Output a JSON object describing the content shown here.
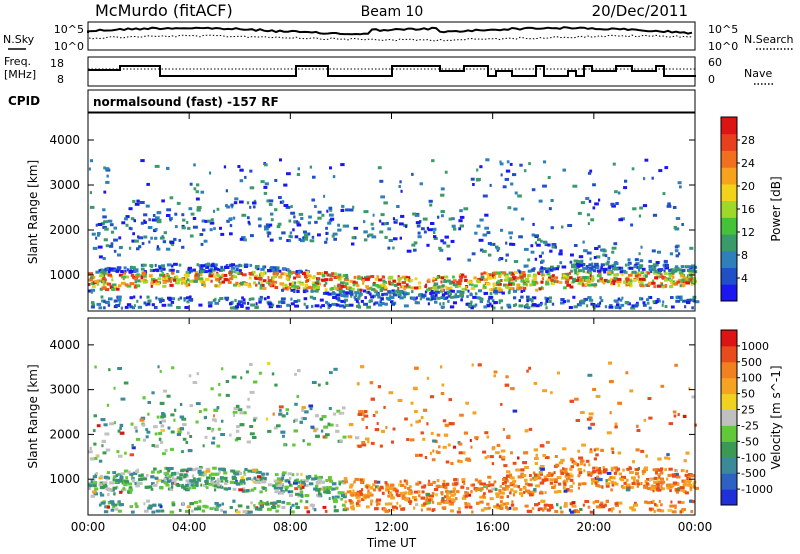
{
  "header": {
    "title_left": "McMurdo (fitACF)",
    "title_center": "Beam 10",
    "title_right": "20/Dec/2011"
  },
  "strip_nsky": {
    "left_label": "N.Sky",
    "right_label": "N.Search",
    "tick_top": "10^5",
    "tick_bottom": "10^0",
    "tick_top_right": "10^5",
    "tick_bottom_right": "10^0"
  },
  "strip_freq": {
    "left_label_1": "Freq.",
    "left_label_2": "[MHz]",
    "right_label": "Nave",
    "tick_top_left": "18",
    "tick_bottom_left": "8",
    "tick_top_right": "60",
    "tick_bottom_right": "0"
  },
  "cpid": {
    "label": "CPID",
    "text": "normalsound (fast) -157 RF"
  },
  "chart_data": [
    {
      "type": "heatmap",
      "ylabel": "Slant Range [km]",
      "ylim": [
        200,
        4600
      ],
      "y_ticks": [
        "1000",
        "2000",
        "3000",
        "4000"
      ],
      "x_ticks": [
        "00:00",
        "04:00",
        "08:00",
        "12:00",
        "16:00",
        "20:00",
        "00:00"
      ],
      "colorbar_label": "Power [dB]",
      "colorbar_ticks": [
        "28",
        "24",
        "20",
        "16",
        "12",
        "8",
        "4"
      ],
      "colorbar_colors": [
        "#1c16f0",
        "#2050c8",
        "#2f7fb8",
        "#3a9a6a",
        "#46c23a",
        "#a0d82a",
        "#f2d21a",
        "#f6a21c",
        "#f07020",
        "#e8401e",
        "#dd1414"
      ]
    },
    {
      "type": "heatmap",
      "xlabel": "Time UT",
      "ylabel": "Slant Range [km]",
      "ylim": [
        200,
        4600
      ],
      "y_ticks": [
        "1000",
        "2000",
        "3000",
        "4000"
      ],
      "x_ticks": [
        "00:00",
        "04:00",
        "08:00",
        "12:00",
        "16:00",
        "20:00",
        "00:00"
      ],
      "colorbar_label": "Velocity [m s^-1]",
      "colorbar_ticks": [
        "1000",
        "500",
        "100",
        "50",
        "25",
        "-25",
        "-50",
        "-100",
        "-500",
        "-1000"
      ],
      "colorbar_colors": [
        "#2030d8",
        "#2d62c4",
        "#3b8a9a",
        "#3a9a54",
        "#62c83a",
        "#c0c0c0",
        "#f0d020",
        "#f4a420",
        "#f08020",
        "#e84c1c",
        "#dd1414"
      ]
    }
  ]
}
